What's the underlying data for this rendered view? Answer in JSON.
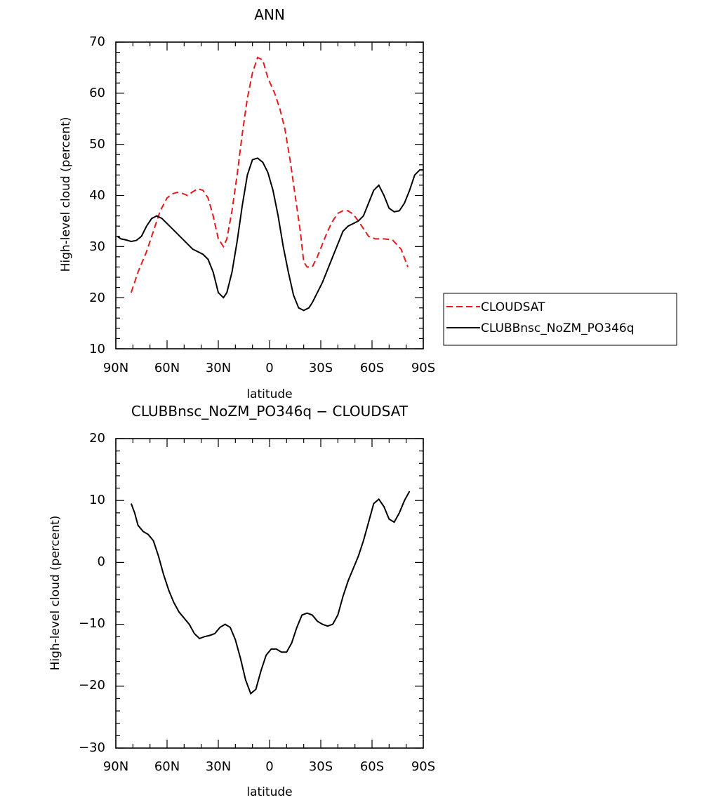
{
  "chart_data": [
    {
      "type": "line",
      "title": "ANN",
      "xlabel": "latitude",
      "ylabel": "High-level cloud (percent)",
      "x_tick_labels": [
        "90N",
        "60N",
        "30N",
        "0",
        "30S",
        "60S",
        "90S"
      ],
      "y_tick_labels": [
        "10",
        "20",
        "30",
        "40",
        "50",
        "60",
        "70"
      ],
      "xlim": [
        90,
        -90
      ],
      "ylim": [
        10,
        70
      ],
      "x_note": "x values are latitude in degrees, positive = N, negative = S",
      "legend": {
        "placement": "right"
      },
      "series": [
        {
          "name": "CLOUDSAT",
          "color": "#e41a1c",
          "dash": "dashed",
          "x": [
            81,
            77,
            72,
            68,
            64,
            60,
            57,
            54,
            51,
            48,
            45,
            42,
            39,
            36,
            33,
            30,
            27,
            25,
            22,
            19,
            16,
            13,
            10,
            7,
            4,
            1,
            -3,
            -6,
            -9,
            -12,
            -15,
            -18,
            -20,
            -22,
            -25,
            -28,
            -31,
            -34,
            -37,
            -40,
            -43,
            -46,
            -49,
            -52,
            -55,
            -58,
            -62,
            -67,
            -72,
            -77,
            -81
          ],
          "y": [
            21,
            25,
            29,
            33,
            37,
            39.5,
            40.3,
            40.6,
            40.4,
            40,
            40.7,
            41.3,
            41,
            39.5,
            36,
            31.5,
            30,
            31.5,
            37,
            44,
            52,
            59,
            64,
            67,
            66.5,
            63,
            60,
            57,
            53,
            47,
            40,
            33,
            27,
            26,
            26,
            28,
            30.5,
            33,
            35,
            36.5,
            37,
            37,
            36.3,
            35,
            33.5,
            32,
            31.5,
            31.5,
            31.3,
            29.5,
            26
          ]
        },
        {
          "name": "CLUBBnsc_NoZM_PO346q",
          "color": "#000000",
          "dash": "solid",
          "x": [
            89,
            87,
            84,
            81,
            78,
            75,
            72,
            69,
            66,
            63,
            60,
            57,
            54,
            51,
            48,
            45,
            42,
            39,
            36,
            33,
            30,
            27,
            25,
            22,
            19,
            16,
            13,
            10,
            7,
            4,
            1,
            -2,
            -5,
            -8,
            -11,
            -14,
            -17,
            -20,
            -23,
            -25,
            -28,
            -31,
            -34,
            -37,
            -40,
            -43,
            -46,
            -49,
            -52,
            -55,
            -58,
            -61,
            -64,
            -67,
            -70,
            -73,
            -76,
            -79,
            -82,
            -85,
            -88,
            -90
          ],
          "y": [
            32,
            31.5,
            31.3,
            31,
            31.2,
            32,
            34,
            35.5,
            36,
            35.5,
            34.5,
            33.5,
            32.5,
            31.5,
            30.5,
            29.5,
            29,
            28.5,
            27.5,
            25,
            21,
            20,
            21,
            25,
            31,
            38,
            44,
            47,
            47.3,
            46.5,
            44.5,
            41,
            36,
            30,
            25,
            20.5,
            18,
            17.5,
            18,
            19,
            21,
            23,
            25.5,
            28,
            30.5,
            33,
            34,
            34.5,
            35,
            36,
            38.5,
            41,
            42,
            40,
            37.5,
            36.8,
            37,
            38.5,
            41,
            44,
            45,
            45
          ]
        }
      ]
    },
    {
      "type": "line",
      "title": "CLUBBnsc_NoZM_PO346q − CLOUDSAT",
      "xlabel": "latitude",
      "ylabel": "High-level cloud (percent)",
      "x_tick_labels": [
        "90N",
        "60N",
        "30N",
        "0",
        "30S",
        "60S",
        "90S"
      ],
      "y_tick_labels": [
        "−30",
        "−20",
        "−10",
        "0",
        "10",
        "20"
      ],
      "xlim": [
        90,
        -90
      ],
      "ylim": [
        -30,
        20
      ],
      "series": [
        {
          "color": "#000000",
          "dash": "solid",
          "x": [
            81,
            79,
            77,
            74,
            71,
            68,
            65,
            62,
            59,
            56,
            53,
            50,
            47,
            44,
            41,
            38,
            35,
            32,
            29,
            26,
            23,
            20,
            17,
            14,
            11,
            8,
            5,
            2,
            -1,
            -4,
            -7,
            -10,
            -13,
            -16,
            -19,
            -22,
            -25,
            -28,
            -31,
            -34,
            -37,
            -40,
            -43,
            -46,
            -49,
            -52,
            -55,
            -58,
            -61,
            -64,
            -67,
            -70,
            -73,
            -76,
            -79,
            -82
          ],
          "y": [
            9.5,
            8,
            6,
            5,
            4.5,
            3.5,
            1,
            -2,
            -4.5,
            -6.5,
            -8,
            -9,
            -10,
            -11.5,
            -12.3,
            -12,
            -11.8,
            -11.5,
            -10.5,
            -10,
            -10.5,
            -12.5,
            -15.5,
            -19,
            -21.2,
            -20.5,
            -17.5,
            -15,
            -14,
            -14,
            -14.5,
            -14.5,
            -13,
            -10.5,
            -8.5,
            -8.2,
            -8.5,
            -9.5,
            -10,
            -10.3,
            -10,
            -8.5,
            -5.5,
            -3,
            -1,
            1,
            3.5,
            6.5,
            9.5,
            10.2,
            9,
            7,
            6.5,
            8,
            10,
            11.5
          ]
        }
      ]
    }
  ]
}
